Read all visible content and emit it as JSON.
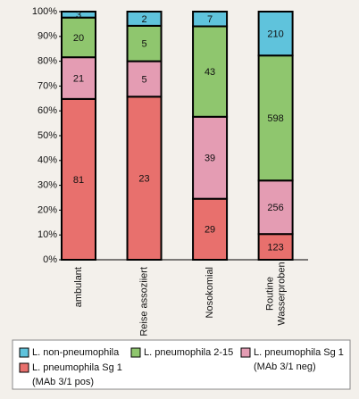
{
  "chart_data": {
    "type": "bar",
    "stacked": "percent",
    "categories": [
      "ambulant",
      "Reise assoziiert",
      "Nosokomial",
      "Routine Wasserproben"
    ],
    "series": [
      {
        "name": "L. pneumophila Sg 1 (MAb 3/1 pos)",
        "color": "#e8706d",
        "values": [
          81,
          23,
          29,
          123
        ]
      },
      {
        "name": "L. pneumophila Sg 1 (MAb 3/1 neg)",
        "color": "#e49cb3",
        "values": [
          21,
          5,
          39,
          256
        ]
      },
      {
        "name": "L. pneumophila 2-15",
        "color": "#8fc66e",
        "values": [
          20,
          5,
          43,
          598
        ]
      },
      {
        "name": "L. non-pneumophila",
        "color": "#5fc3dc",
        "values": [
          3,
          2,
          7,
          210
        ]
      }
    ],
    "ylim": [
      0,
      100
    ],
    "yticks": [
      {
        "value": 0,
        "label": "0%"
      },
      {
        "value": 10,
        "label": "10%"
      },
      {
        "value": 20,
        "label": "20%"
      },
      {
        "value": 30,
        "label": "30%"
      },
      {
        "value": 40,
        "label": "40%"
      },
      {
        "value": 50,
        "label": "50%"
      },
      {
        "value": 60,
        "label": "60%"
      },
      {
        "value": 70,
        "label": "70%"
      },
      {
        "value": 80,
        "label": "80%"
      },
      {
        "value": 90,
        "label": "90%"
      },
      {
        "value": 100,
        "label": "100%"
      }
    ],
    "legend": "bottom"
  }
}
